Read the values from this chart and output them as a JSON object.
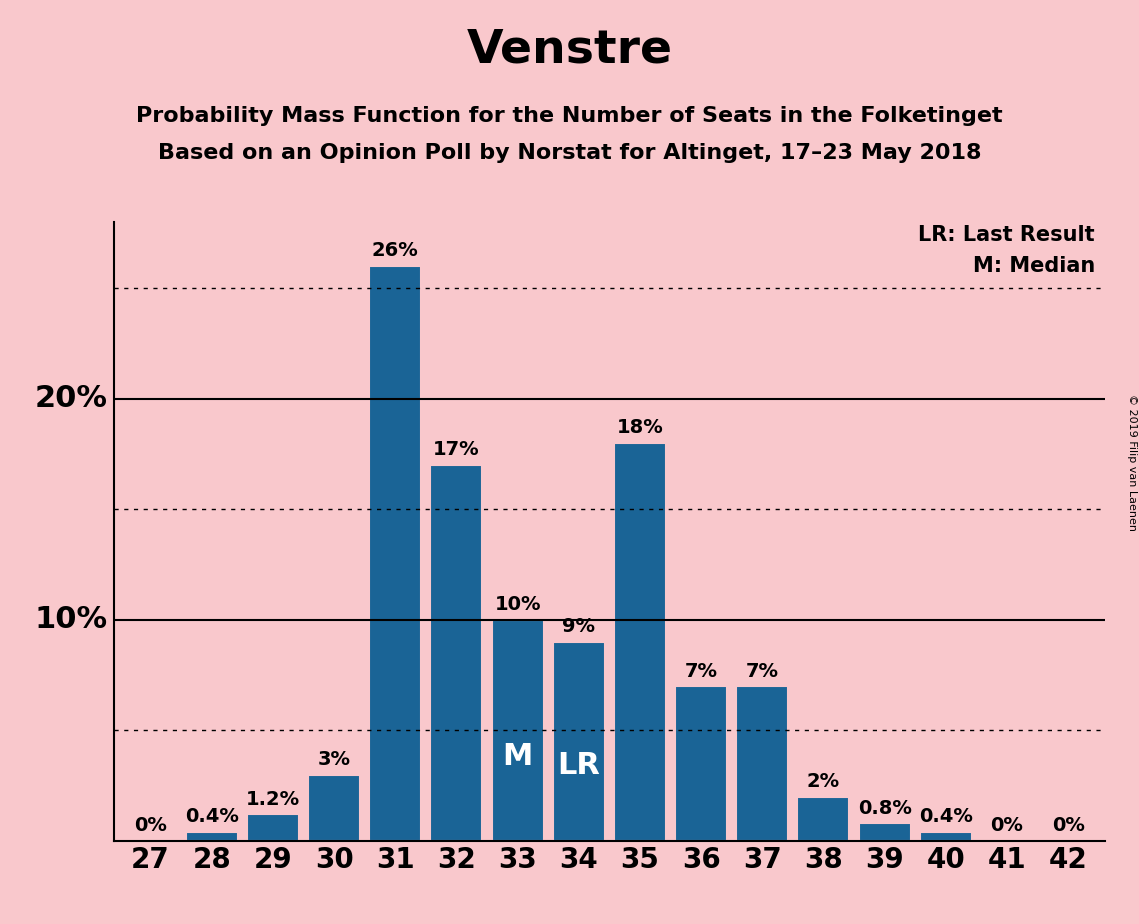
{
  "title": "Venstre",
  "subtitle1": "Probability Mass Function for the Number of Seats in the Folketinget",
  "subtitle2": "Based on an Opinion Poll by Norstat for Altinget, 17–23 May 2018",
  "copyright": "© 2019 Filip van Laenen",
  "categories": [
    27,
    28,
    29,
    30,
    31,
    32,
    33,
    34,
    35,
    36,
    37,
    38,
    39,
    40,
    41,
    42
  ],
  "values": [
    0,
    0.4,
    1.2,
    3,
    26,
    17,
    10,
    9,
    18,
    7,
    7,
    2,
    0.8,
    0.4,
    0,
    0
  ],
  "bar_labels": [
    "0%",
    "0.4%",
    "1.2%",
    "3%",
    "26%",
    "17%",
    "10%",
    "9%",
    "18%",
    "7%",
    "7%",
    "2%",
    "0.8%",
    "0.4%",
    "0%",
    "0%"
  ],
  "bar_color": "#1a6496",
  "background_color": "#f9c8cc",
  "bar_edge_color": "#f9c8cc",
  "ylim": [
    0,
    28
  ],
  "median_bar": 33,
  "last_result_bar": 34,
  "legend_lr": "LR: Last Result",
  "legend_m": "M: Median",
  "solid_gridlines": [
    10,
    20
  ],
  "dotted_gridlines": [
    5,
    15,
    25
  ],
  "title_fontsize": 34,
  "subtitle_fontsize": 16,
  "axis_fontsize": 20,
  "bar_label_fontsize": 14,
  "bar_in_label_fontsize": 22,
  "ytick_label_fontsize": 22
}
